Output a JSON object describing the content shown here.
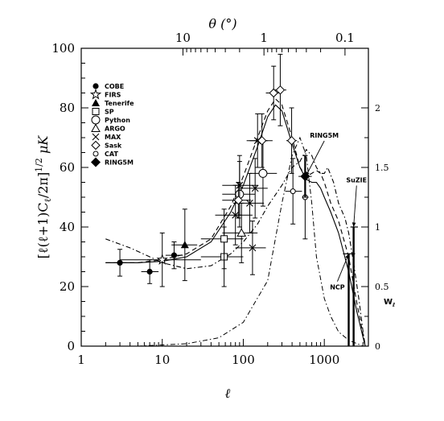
{
  "chart_data": {
    "type": "scatter",
    "title": "",
    "xlabel": "ℓ",
    "xscale": "log",
    "xlim": [
      1,
      3500
    ],
    "xticks": [
      {
        "v": 1,
        "label": "1"
      },
      {
        "v": 10,
        "label": "10"
      },
      {
        "v": 100,
        "label": "100"
      },
      {
        "v": 1000,
        "label": "1000"
      }
    ],
    "ylabel": "[ℓ(ℓ+1)Cℓ/2π]^1/2 μK",
    "ylabel_parts": {
      "main": "[ℓ(ℓ+1)C",
      "sub": "ℓ",
      "mid": "/2π]",
      "sup": "1/2",
      "unit": " μK"
    },
    "ylim": [
      0,
      100
    ],
    "yticks": [
      0,
      20,
      40,
      60,
      80,
      100
    ],
    "top_axis": {
      "label": "θ  (°)",
      "ticks": [
        {
          "v": 18,
          "label": "10"
        },
        {
          "v": 180,
          "label": "1"
        },
        {
          "v": 1800,
          "label": "0.1"
        }
      ]
    },
    "right_axis": {
      "label": "Wℓ",
      "label_parts": {
        "main": "W",
        "sub": "ℓ"
      },
      "lim": [
        0,
        2.5
      ],
      "ticks": [
        {
          "v": 0,
          "label": "0"
        },
        {
          "v": 0.5,
          "label": "0.5"
        },
        {
          "v": 1,
          "label": "1"
        },
        {
          "v": 1.5,
          "label": "1.5"
        },
        {
          "v": 2,
          "label": "2"
        }
      ]
    },
    "legend": {
      "position": "top-left",
      "entries": [
        {
          "marker": "filled-circle",
          "label": "COBE"
        },
        {
          "marker": "star",
          "label": "FIRS"
        },
        {
          "marker": "filled-triangle",
          "label": "Tenerife"
        },
        {
          "marker": "open-square",
          "label": "SP"
        },
        {
          "marker": "open-circle",
          "label": "Python"
        },
        {
          "marker": "open-triangle",
          "label": "ARGO"
        },
        {
          "marker": "cross",
          "label": "MAX"
        },
        {
          "marker": "open-diamond",
          "label": "Sask"
        },
        {
          "marker": "small-open-circle",
          "label": "CAT"
        },
        {
          "marker": "filled-diamond",
          "label": "RING5M"
        }
      ]
    },
    "series": [
      {
        "name": "COBE",
        "marker": "filled-circle",
        "points": [
          {
            "x": 3,
            "y": 28,
            "xlo": 2,
            "xhi": 4.5,
            "ylo": 23.5,
            "yhi": 32.5
          },
          {
            "x": 7,
            "y": 25,
            "xlo": 5.5,
            "xhi": 9,
            "ylo": 21,
            "yhi": 29
          },
          {
            "x": 14,
            "y": 30.5,
            "xlo": 11,
            "xhi": 18,
            "ylo": 26,
            "yhi": 35
          }
        ]
      },
      {
        "name": "FIRS",
        "marker": "star",
        "points": [
          {
            "x": 10,
            "y": 29,
            "xlo": 3,
            "xhi": 30,
            "ylo": 20,
            "yhi": 38
          }
        ]
      },
      {
        "name": "Tenerife",
        "marker": "filled-triangle",
        "points": [
          {
            "x": 19,
            "y": 34,
            "xlo": 13,
            "xhi": 27,
            "ylo": 22,
            "yhi": 46
          }
        ]
      },
      {
        "name": "SP",
        "marker": "open-square",
        "points": [
          {
            "x": 58,
            "y": 30,
            "xlo": 30,
            "xhi": 100,
            "ylo": 20,
            "yhi": 40
          },
          {
            "x": 58,
            "y": 36,
            "xlo": 30,
            "xhi": 100,
            "ylo": 26,
            "yhi": 46
          }
        ]
      },
      {
        "name": "Python",
        "marker": "open-circle",
        "points": [
          {
            "x": 90,
            "y": 51,
            "xlo": 55,
            "xhi": 140,
            "ylo": 40,
            "yhi": 62
          },
          {
            "x": 175,
            "y": 58,
            "xlo": 120,
            "xhi": 260,
            "ylo": 47,
            "yhi": 69
          }
        ]
      },
      {
        "name": "ARGO",
        "marker": "open-triangle",
        "points": [
          {
            "x": 95,
            "y": 38,
            "xlo": 55,
            "xhi": 150,
            "ylo": 28,
            "yhi": 48
          }
        ]
      },
      {
        "name": "MAX",
        "marker": "cross",
        "points": [
          {
            "x": 80,
            "y": 44,
            "xlo": 45,
            "xhi": 130,
            "ylo": 34,
            "yhi": 54
          },
          {
            "x": 90,
            "y": 54,
            "xlo": 55,
            "xhi": 150,
            "ylo": 44,
            "yhi": 64
          },
          {
            "x": 120,
            "y": 48,
            "xlo": 75,
            "xhi": 180,
            "ylo": 38,
            "yhi": 58
          },
          {
            "x": 130,
            "y": 33,
            "xlo": 80,
            "xhi": 190,
            "ylo": 24,
            "yhi": 42
          },
          {
            "x": 140,
            "y": 53,
            "xlo": 90,
            "xhi": 200,
            "ylo": 43,
            "yhi": 63
          },
          {
            "x": 150,
            "y": 69,
            "xlo": 110,
            "xhi": 200,
            "ylo": 60,
            "yhi": 78
          }
        ]
      },
      {
        "name": "Sask",
        "marker": "open-diamond",
        "points": [
          {
            "x": 87,
            "y": 49,
            "xlo": 55,
            "xhi": 125,
            "ylo": 43,
            "yhi": 55
          },
          {
            "x": 170,
            "y": 69,
            "xlo": 120,
            "xhi": 230,
            "ylo": 60,
            "yhi": 78
          },
          {
            "x": 237,
            "y": 85,
            "xlo": 190,
            "xhi": 300,
            "ylo": 76,
            "yhi": 94
          },
          {
            "x": 286,
            "y": 86,
            "xlo": 240,
            "xhi": 340,
            "ylo": 74,
            "yhi": 98
          },
          {
            "x": 395,
            "y": 69,
            "xlo": 340,
            "xhi": 460,
            "ylo": 58,
            "yhi": 80
          }
        ]
      },
      {
        "name": "CAT",
        "marker": "small-open-circle",
        "points": [
          {
            "x": 410,
            "y": 52,
            "xlo": 330,
            "xhi": 530,
            "ylo": 41,
            "yhi": 63
          },
          {
            "x": 580,
            "y": 50,
            "xlo": 530,
            "xhi": 640,
            "ylo": 36,
            "yhi": 64
          }
        ]
      },
      {
        "name": "RING5M",
        "marker": "filled-diamond",
        "points": [
          {
            "x": 580,
            "y": 57,
            "xlo": 480,
            "xhi": 700,
            "ylo": 50,
            "yhi": 64
          }
        ]
      }
    ],
    "upper_limits": [
      {
        "x": 2000,
        "xlo": 1700,
        "xhi": 2400,
        "y": 31
      },
      {
        "x": 2300,
        "xlo": 2100,
        "xhi": 2600,
        "y": 40
      }
    ],
    "theory_curves": [
      {
        "style": "solid",
        "points": [
          [
            2,
            28
          ],
          [
            5,
            28
          ],
          [
            10,
            28.5
          ],
          [
            20,
            30
          ],
          [
            40,
            35
          ],
          [
            70,
            45
          ],
          [
            100,
            54
          ],
          [
            150,
            67
          ],
          [
            200,
            77
          ],
          [
            250,
            81
          ],
          [
            300,
            79
          ],
          [
            400,
            68
          ],
          [
            500,
            60
          ],
          [
            600,
            56
          ],
          [
            700,
            55
          ],
          [
            800,
            55
          ],
          [
            900,
            53
          ],
          [
            1000,
            50
          ],
          [
            1200,
            45
          ],
          [
            1500,
            38
          ],
          [
            2000,
            25
          ],
          [
            2500,
            12
          ],
          [
            3000,
            3
          ],
          [
            3200,
            0
          ]
        ]
      },
      {
        "style": "dashed",
        "points": [
          [
            2,
            28
          ],
          [
            5,
            28
          ],
          [
            10,
            29
          ],
          [
            20,
            31
          ],
          [
            40,
            36
          ],
          [
            70,
            47
          ],
          [
            100,
            57
          ],
          [
            150,
            70
          ],
          [
            200,
            79
          ],
          [
            250,
            83
          ],
          [
            300,
            81
          ],
          [
            400,
            70
          ],
          [
            500,
            60
          ],
          [
            600,
            57
          ],
          [
            700,
            58
          ],
          [
            800,
            59
          ],
          [
            900,
            58
          ],
          [
            1000,
            55
          ],
          [
            1200,
            48
          ],
          [
            1500,
            42
          ],
          [
            2000,
            30
          ],
          [
            2500,
            15
          ],
          [
            3000,
            4
          ],
          [
            3200,
            0
          ]
        ]
      },
      {
        "style": "dash-dot",
        "points": [
          [
            2,
            36
          ],
          [
            4,
            33
          ],
          [
            7,
            30
          ],
          [
            10,
            28
          ],
          [
            20,
            26
          ],
          [
            40,
            27
          ],
          [
            70,
            31
          ],
          [
            100,
            35
          ],
          [
            150,
            41
          ],
          [
            200,
            47
          ],
          [
            300,
            54
          ],
          [
            400,
            60
          ],
          [
            500,
            62
          ],
          [
            600,
            66
          ],
          [
            700,
            64
          ],
          [
            800,
            60
          ],
          [
            900,
            58
          ],
          [
            1000,
            58
          ],
          [
            1100,
            60
          ],
          [
            1300,
            55
          ],
          [
            1500,
            48
          ],
          [
            1800,
            43
          ],
          [
            2000,
            38
          ],
          [
            2300,
            28
          ],
          [
            2700,
            15
          ],
          [
            3000,
            5
          ],
          [
            3200,
            0
          ]
        ]
      }
    ],
    "window_function": {
      "axis": "right",
      "points": [
        [
          5,
          0
        ],
        [
          20,
          0.02
        ],
        [
          50,
          0.07
        ],
        [
          100,
          0.2
        ],
        [
          200,
          0.55
        ],
        [
          300,
          1.2
        ],
        [
          400,
          1.6
        ],
        [
          500,
          1.75
        ],
        [
          600,
          1.6
        ],
        [
          700,
          1.2
        ],
        [
          800,
          0.75
        ],
        [
          1000,
          0.4
        ],
        [
          1200,
          0.25
        ],
        [
          1500,
          0.12
        ],
        [
          2000,
          0.05
        ],
        [
          3000,
          0
        ]
      ]
    },
    "annotations": [
      {
        "text": "RING5M",
        "x": 1000,
        "y": 70,
        "arrow_to": [
          590,
          57
        ]
      },
      {
        "text": "SuZIE",
        "x": 2500,
        "y": 55,
        "arrow_to": [
          2300,
          40
        ]
      },
      {
        "text": "NCP",
        "x": 1450,
        "y": 19,
        "arrow_to": [
          2000,
          31
        ]
      }
    ]
  }
}
